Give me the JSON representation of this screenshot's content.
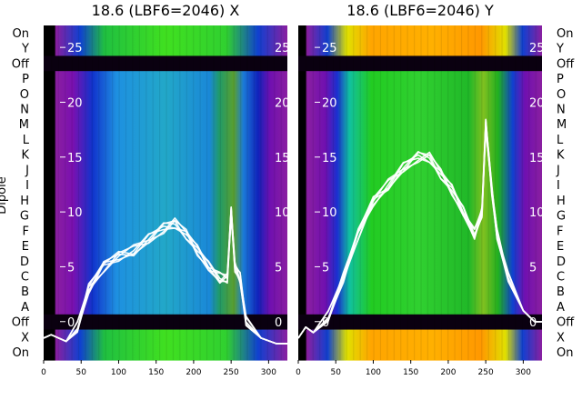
{
  "chart_data": [
    {
      "type": "heatmap",
      "title": "18.6 (LBF6=2046) X",
      "ylabel": "Dipole",
      "x_ticks": [
        0,
        50,
        100,
        150,
        200,
        250,
        300
      ],
      "xlim": [
        0,
        325
      ],
      "row_labels": [
        "On",
        "Y",
        "Off",
        "P",
        "O",
        "N",
        "M",
        "L",
        "K",
        "J",
        "I",
        "H",
        "G",
        "F",
        "E",
        "D",
        "C",
        "B",
        "A",
        "Off",
        "X",
        "On"
      ],
      "overlay_y_ticks": [
        0,
        5,
        10,
        15,
        20,
        25
      ],
      "overlay_ylim": [
        -3.5,
        27
      ],
      "overlay_line": {
        "x": [
          0,
          10,
          30,
          45,
          60,
          80,
          100,
          120,
          140,
          160,
          175,
          190,
          205,
          220,
          235,
          245,
          250,
          255,
          262,
          270,
          290,
          310,
          325
        ],
        "y": [
          -1.5,
          -1.2,
          -1.8,
          -0.5,
          3,
          5,
          6,
          6.5,
          7.5,
          8.5,
          9,
          8,
          6.5,
          5,
          4,
          4,
          10,
          5,
          4,
          0,
          -1.5,
          -2,
          -2
        ]
      }
    },
    {
      "type": "heatmap",
      "title": "18.6 (LBF6=2046) Y",
      "x_ticks": [
        0,
        50,
        100,
        150,
        200,
        250,
        300
      ],
      "xlim": [
        0,
        325
      ],
      "row_labels": [
        "On",
        "Y",
        "Off",
        "P",
        "O",
        "N",
        "M",
        "L",
        "K",
        "J",
        "I",
        "H",
        "G",
        "F",
        "E",
        "D",
        "C",
        "B",
        "A",
        "Off",
        "X",
        "On"
      ],
      "overlay_y_ticks": [
        0,
        5,
        10,
        15,
        20,
        25
      ],
      "overlay_ylim": [
        -3.5,
        27
      ],
      "overlay_line": {
        "x": [
          0,
          10,
          20,
          40,
          60,
          80,
          100,
          120,
          140,
          160,
          175,
          190,
          205,
          220,
          235,
          245,
          250,
          258,
          265,
          280,
          300,
          315,
          325
        ],
        "y": [
          -1.5,
          -0.5,
          -1,
          0.5,
          4,
          8,
          11,
          12.5,
          14,
          15,
          15,
          13.5,
          12,
          10,
          8,
          10,
          18,
          12,
          8,
          4,
          1,
          0,
          0
        ]
      }
    }
  ]
}
